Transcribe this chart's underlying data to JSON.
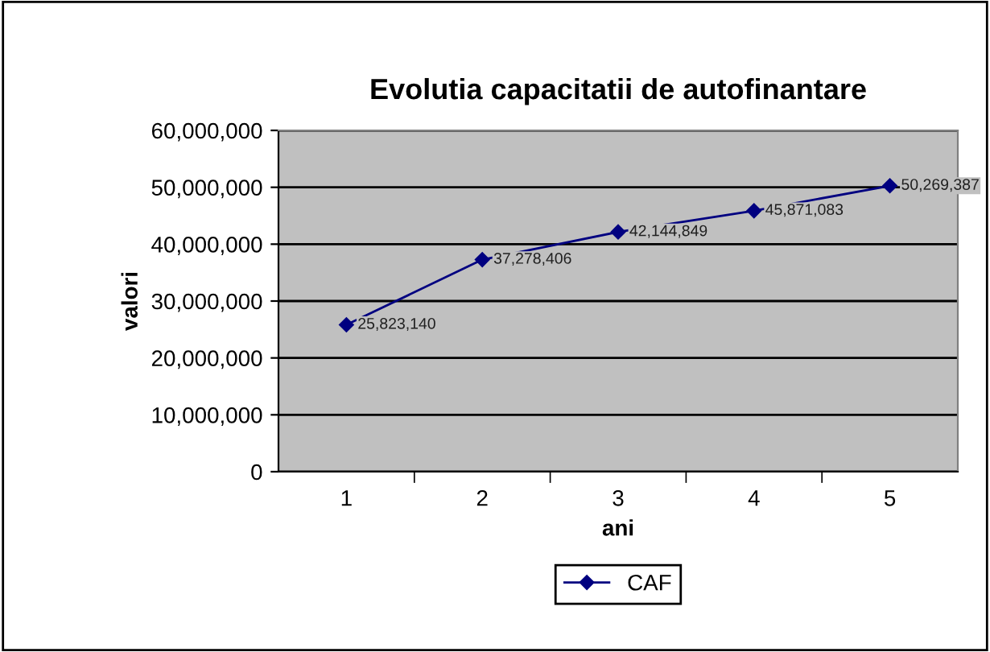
{
  "chart_data": {
    "type": "line",
    "title": "Evolutia capacitatii de autofinantare",
    "xlabel": "ani",
    "ylabel": "valori",
    "categories": [
      "1",
      "2",
      "3",
      "4",
      "5"
    ],
    "series": [
      {
        "name": "CAF",
        "color": "#000080",
        "values": [
          25823140,
          37278406,
          42144849,
          45871083,
          50269387
        ],
        "value_labels": [
          "25,823,140",
          "37,278,406",
          "42,144,849",
          "45,871,083",
          "50,269,387"
        ]
      }
    ],
    "ylim": [
      0,
      60000000
    ],
    "yticks": [
      0,
      {
        "value": 10000000,
        "label": "10,000,000"
      },
      {
        "value": 20000000,
        "label": "20,000,000"
      },
      {
        "value": 30000000,
        "label": "30,000,000"
      },
      {
        "value": 40000000,
        "label": "40,000,000"
      },
      {
        "value": 50000000,
        "label": "50,000,000"
      },
      {
        "value": 60000000,
        "label": "60,000,000"
      }
    ],
    "grid": "y",
    "legend": "bottom",
    "marker": "diamond",
    "line_style": "solid"
  }
}
